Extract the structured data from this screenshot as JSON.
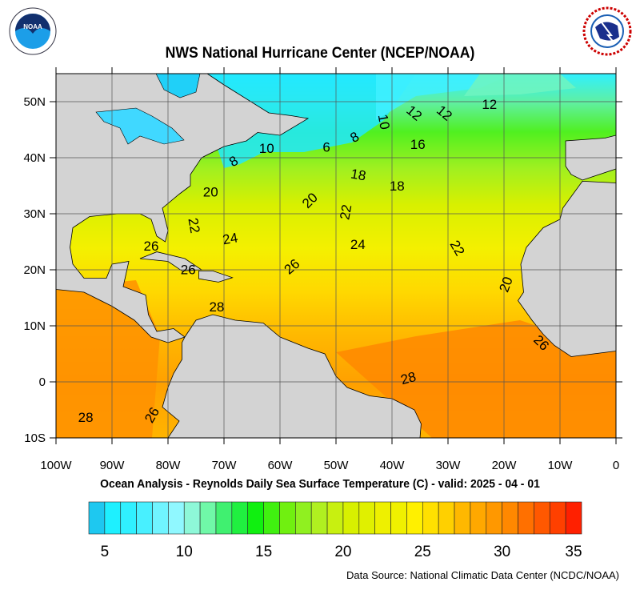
{
  "header": {
    "title": "NWS National Hurricane Center (NCEP/NOAA)",
    "left_logo": {
      "icon": "noaa-logo",
      "text": "NOAA"
    },
    "right_logo": {
      "icon": "nws-logo",
      "text": "NATIONAL WEATHER SERVICE"
    }
  },
  "map": {
    "lon_range": [
      -100,
      0
    ],
    "lat_range": [
      -10,
      55
    ],
    "lon_ticks": [
      {
        "value": -100,
        "label": "100W"
      },
      {
        "value": -90,
        "label": "90W"
      },
      {
        "value": -80,
        "label": "80W"
      },
      {
        "value": -70,
        "label": "70W"
      },
      {
        "value": -60,
        "label": "60W"
      },
      {
        "value": -50,
        "label": "50W"
      },
      {
        "value": -40,
        "label": "40W"
      },
      {
        "value": -30,
        "label": "30W"
      },
      {
        "value": -20,
        "label": "20W"
      },
      {
        "value": -10,
        "label": "10W"
      },
      {
        "value": 0,
        "label": "0"
      }
    ],
    "lat_ticks": [
      {
        "value": 50,
        "label": "50N"
      },
      {
        "value": 40,
        "label": "40N"
      },
      {
        "value": 30,
        "label": "30N"
      },
      {
        "value": 20,
        "label": "20N"
      },
      {
        "value": 10,
        "label": "10N"
      },
      {
        "value": 0,
        "label": "0"
      },
      {
        "value": -10,
        "label": "10S"
      }
    ],
    "land_color": "#d3d3d3",
    "grid": true,
    "contour_labels": [
      {
        "text": "12",
        "lon": -22.6,
        "lat": 49.6,
        "rot": 0
      },
      {
        "text": "12",
        "lon": -36,
        "lat": 48,
        "rot": 40
      },
      {
        "text": "12",
        "lon": -30.6,
        "lat": 48,
        "rot": 40
      },
      {
        "text": "10",
        "lon": -41.4,
        "lat": 46.4,
        "rot": 80
      },
      {
        "text": "16",
        "lon": -35.4,
        "lat": 42.4,
        "rot": 0
      },
      {
        "text": "10",
        "lon": -62.4,
        "lat": 41.7,
        "rot": 0
      },
      {
        "text": "6",
        "lon": -51.7,
        "lat": 41.9,
        "rot": 0
      },
      {
        "text": "8",
        "lon": -46.7,
        "lat": 43.7,
        "rot": -30
      },
      {
        "text": "8",
        "lon": -68.3,
        "lat": 39.4,
        "rot": -30
      },
      {
        "text": "18",
        "lon": -46,
        "lat": 37,
        "rot": 10
      },
      {
        "text": "18",
        "lon": -39.1,
        "lat": 35,
        "rot": 0
      },
      {
        "text": "20",
        "lon": -72.4,
        "lat": 33.9,
        "rot": 0
      },
      {
        "text": "20",
        "lon": -54.7,
        "lat": 32.4,
        "rot": -45
      },
      {
        "text": "22",
        "lon": -48.3,
        "lat": 30.3,
        "rot": -80
      },
      {
        "text": "22",
        "lon": -75.3,
        "lat": 27.9,
        "rot": 80
      },
      {
        "text": "24",
        "lon": -68.9,
        "lat": 25.6,
        "rot": -10
      },
      {
        "text": "24",
        "lon": -46.1,
        "lat": 24.6,
        "rot": 0
      },
      {
        "text": "22",
        "lon": -28.3,
        "lat": 23.9,
        "rot": 60
      },
      {
        "text": "26",
        "lon": -83,
        "lat": 24.3,
        "rot": 0
      },
      {
        "text": "26",
        "lon": -57.9,
        "lat": 20.6,
        "rot": -40
      },
      {
        "text": "26",
        "lon": -76.4,
        "lat": 20.1,
        "rot": 0
      },
      {
        "text": "20",
        "lon": -19.7,
        "lat": 17.4,
        "rot": -70
      },
      {
        "text": "28",
        "lon": -71.3,
        "lat": 13.4,
        "rot": 0
      },
      {
        "text": "26",
        "lon": -13.3,
        "lat": 7,
        "rot": 45
      },
      {
        "text": "28",
        "lon": -37.1,
        "lat": 0.7,
        "rot": -15
      },
      {
        "text": "28",
        "lon": -94.7,
        "lat": -6.3,
        "rot": 0
      },
      {
        "text": "26",
        "lon": -82.9,
        "lat": -5.9,
        "rot": -60
      }
    ]
  },
  "subtitle": "Ocean Analysis - Reynolds Daily Sea Surface Temperature (C) - valid: 2025 - 04 - 01",
  "colorbar": {
    "min": 4,
    "max": 35,
    "units": "C",
    "labels": [
      {
        "value": 5,
        "label": "5"
      },
      {
        "value": 10,
        "label": "10"
      },
      {
        "value": 15,
        "label": "15"
      },
      {
        "value": 20,
        "label": "20"
      },
      {
        "value": 25,
        "label": "25"
      },
      {
        "value": 30,
        "label": "30"
      },
      {
        "value": 35,
        "label": "35"
      }
    ],
    "colors": [
      "#1ec8f0",
      "#1ef0ff",
      "#30f0ff",
      "#48f0ff",
      "#70f4ff",
      "#90f8ff",
      "#8ef8d8",
      "#70f8a8",
      "#40f070",
      "#20f040",
      "#10f010",
      "#40f010",
      "#70f010",
      "#90f020",
      "#b0f020",
      "#c8f010",
      "#d8f000",
      "#e0f000",
      "#eef000",
      "#f0f000",
      "#fff000",
      "#ffe000",
      "#ffd000",
      "#ffb800",
      "#ffa800",
      "#ff9800",
      "#ff8800",
      "#ff7000",
      "#ff5800",
      "#ff4000",
      "#ff2000"
    ]
  },
  "footer": {
    "source": "Data Source: National Climatic Data Center (NCDC/NOAA)"
  }
}
